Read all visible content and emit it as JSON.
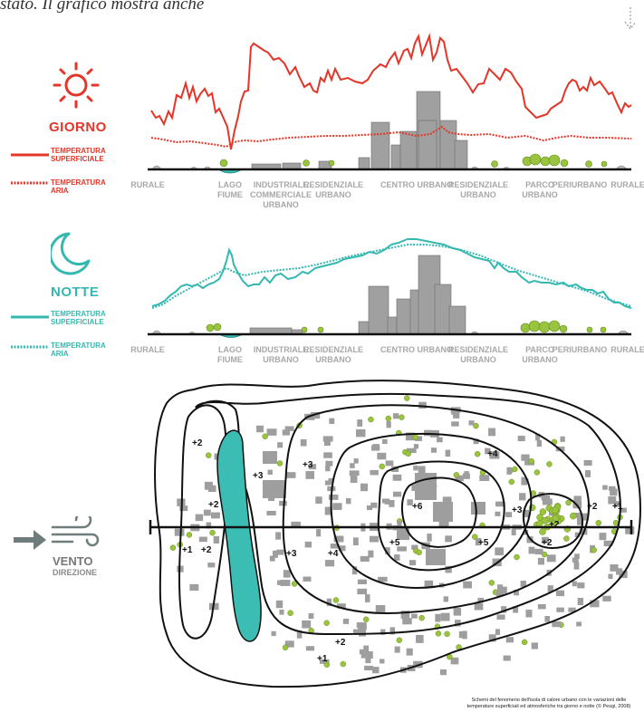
{
  "header": {
    "text": "stato. Il grafico mostra anche"
  },
  "day": {
    "title": "GIORNO",
    "legend_surface": "TEMPERATURA\nSUPERFICIALE",
    "legend_air": "TEMPERATURA\nARIA",
    "color": "#e53528",
    "icon": "sun-icon"
  },
  "night": {
    "title": "NOTTE",
    "legend_surface": "TEMPERATURA\nSUPERFICIALE",
    "legend_air": "TEMPERATURA\nARIA",
    "color": "#35b8b0",
    "icon": "moon-icon"
  },
  "zones_day": [
    "RURALE",
    "LAGO\nFIUME",
    "INDUSTRIALE\nCOMMERCIALE\nURBANO",
    "RESIDENZIALE\nURBANO",
    "CENTRO URBANO",
    "RESIDENZIALE\nURBANO",
    "PARCO\nURBANO",
    "PERIURBANO",
    "RURALE"
  ],
  "zones_night": [
    "RURALE",
    "LAGO\nFIUME",
    "INDUSTRIALE\nURBANO",
    "RESIDENZIALE\nURBANO",
    "CENTRO URBANO",
    "RESIDENZIALE\nURBANO",
    "PARCO\nURBANO",
    "PERIURBANO",
    "RURALE"
  ],
  "wind": {
    "title": "VENTO",
    "subtitle": "DIREZIONE",
    "icon": "wind-icon",
    "arrow_icon": "arrow-right-icon"
  },
  "map_labels": [
    "+2",
    "+2",
    "+3",
    "+3",
    "+4",
    "+6",
    "+3",
    "+2",
    "+1",
    "+1",
    "+2",
    "+3",
    "+4",
    "+5",
    "+5",
    "+2",
    "+2",
    "+1",
    "+2"
  ],
  "credit": "Schemi del fenomeno dell'isola di calore urbano con le variazioni delle\ntemperature superficiali ed atmosferiche tra giorno e notte (© Pesgi, 2008)",
  "colors": {
    "water": "#3bbdb3",
    "building": "#9e9e9e",
    "tree": "#9bc43e",
    "contour": "#111111"
  }
}
